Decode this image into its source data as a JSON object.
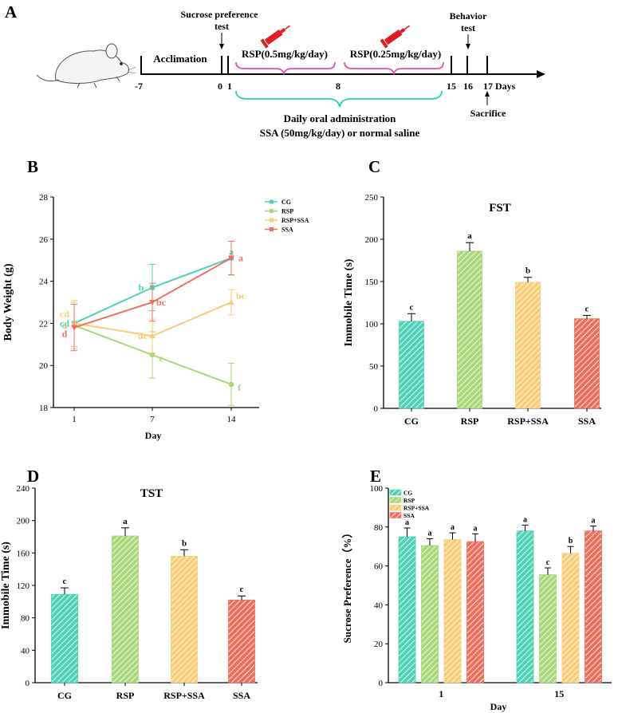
{
  "colors": {
    "CG": "#4fd1b8",
    "RSP": "#a9d77a",
    "RSP+SSA": "#f9cd78",
    "SSA": "#ef6f5e",
    "pink": "#e24fb6",
    "green_brace": "#29d6a3",
    "syringe": "#e21b23"
  },
  "panelA": {
    "label": "A",
    "sucrose_label_1": "Sucrose preference",
    "sucrose_label_2": "test",
    "behavior_label_1": "Behavior",
    "behavior_label_2": "test",
    "acclimation": "Acclimation",
    "rsp1": "RSP(0.5mg/kg/day)",
    "rsp2": "RSP(0.25mg/kg/day)",
    "ticks": [
      "-7",
      "0",
      "1",
      "8",
      "15",
      "16",
      "17"
    ],
    "days_word": "Days",
    "sacrifice": "Sacrifice",
    "daily_1": "Daily oral administration",
    "daily_2": "SSA (50mg/kg/day) or normal saline"
  },
  "chart_data": [
    {
      "panel": "B",
      "type": "line",
      "title": "",
      "xlabel": "Day",
      "ylabel": "Body Weight  (g)",
      "categories": [
        "1",
        "7",
        "14"
      ],
      "ylim": [
        18,
        28
      ],
      "yticks": [
        18,
        20,
        22,
        24,
        26,
        28
      ],
      "legend": [
        "CG",
        "RSP",
        "RSP+SSA",
        "SSA"
      ],
      "legend_position": "top-right",
      "series": [
        {
          "name": "CG",
          "values": [
            22.0,
            23.7,
            25.1
          ],
          "errors": [
            0.0,
            1.1,
            0.8
          ],
          "letters": [
            "cd",
            "b",
            "a"
          ]
        },
        {
          "name": "RSP",
          "values": [
            21.9,
            20.5,
            19.1
          ],
          "errors": [
            1.1,
            1.1,
            1.0
          ],
          "letters": [
            "d",
            "e",
            "f"
          ]
        },
        {
          "name": "RSP+SSA",
          "values": [
            22.0,
            21.4,
            23.0
          ],
          "errors": [
            1.1,
            0.8,
            0.6
          ],
          "letters": [
            "cd",
            "de",
            "bc"
          ]
        },
        {
          "name": "SSA",
          "values": [
            21.8,
            23.0,
            25.1
          ],
          "errors": [
            1.1,
            0.9,
            0.8
          ],
          "letters": [
            "d",
            "bc",
            "a"
          ]
        }
      ]
    },
    {
      "panel": "C",
      "type": "bar",
      "title": "FST",
      "xlabel": "",
      "ylabel": "Immobile Time (s)",
      "categories": [
        "CG",
        "RSP",
        "RSP+SSA",
        "SSA"
      ],
      "values": [
        103,
        186,
        149,
        106
      ],
      "errors": [
        9,
        10,
        6,
        4
      ],
      "letters": [
        "c",
        "a",
        "b",
        "c"
      ],
      "ylim": [
        0,
        250
      ],
      "yticks": [
        0,
        50,
        100,
        150,
        200,
        250
      ]
    },
    {
      "panel": "D",
      "type": "bar",
      "title": "TST",
      "xlabel": "",
      "ylabel": "Immobile Time (s)",
      "categories": [
        "CG",
        "RSP",
        "RSP+SSA",
        "SSA"
      ],
      "values": [
        109,
        181,
        156,
        102
      ],
      "errors": [
        8,
        10,
        8,
        5
      ],
      "letters": [
        "c",
        "a",
        "b",
        "c"
      ],
      "ylim": [
        0,
        240
      ],
      "yticks": [
        0,
        40,
        80,
        120,
        160,
        200,
        240
      ]
    },
    {
      "panel": "E",
      "type": "bar",
      "title": "",
      "xlabel": "Day",
      "ylabel": "Sucrose Preference（%）",
      "categories": [
        "1",
        "15"
      ],
      "ylim": [
        0,
        100
      ],
      "yticks": [
        0,
        20,
        40,
        60,
        80,
        100
      ],
      "legend": [
        "CG",
        "RSP",
        "RSP+SSA",
        "SSA"
      ],
      "legend_position": "top-left",
      "series": [
        {
          "name": "CG",
          "values": [
            75,
            78
          ],
          "errors": [
            4.5,
            3
          ],
          "letters": [
            "a",
            "a"
          ]
        },
        {
          "name": "RSP",
          "values": [
            70.5,
            55.5
          ],
          "errors": [
            3.5,
            3.5
          ],
          "letters": [
            "a",
            "c"
          ]
        },
        {
          "name": "RSP+SSA",
          "values": [
            73.5,
            66.5
          ],
          "errors": [
            3.5,
            3.5
          ],
          "letters": [
            "a",
            "b"
          ]
        },
        {
          "name": "SSA",
          "values": [
            72.5,
            78
          ],
          "errors": [
            4,
            2.5
          ],
          "letters": [
            "a",
            "a"
          ]
        }
      ]
    }
  ]
}
